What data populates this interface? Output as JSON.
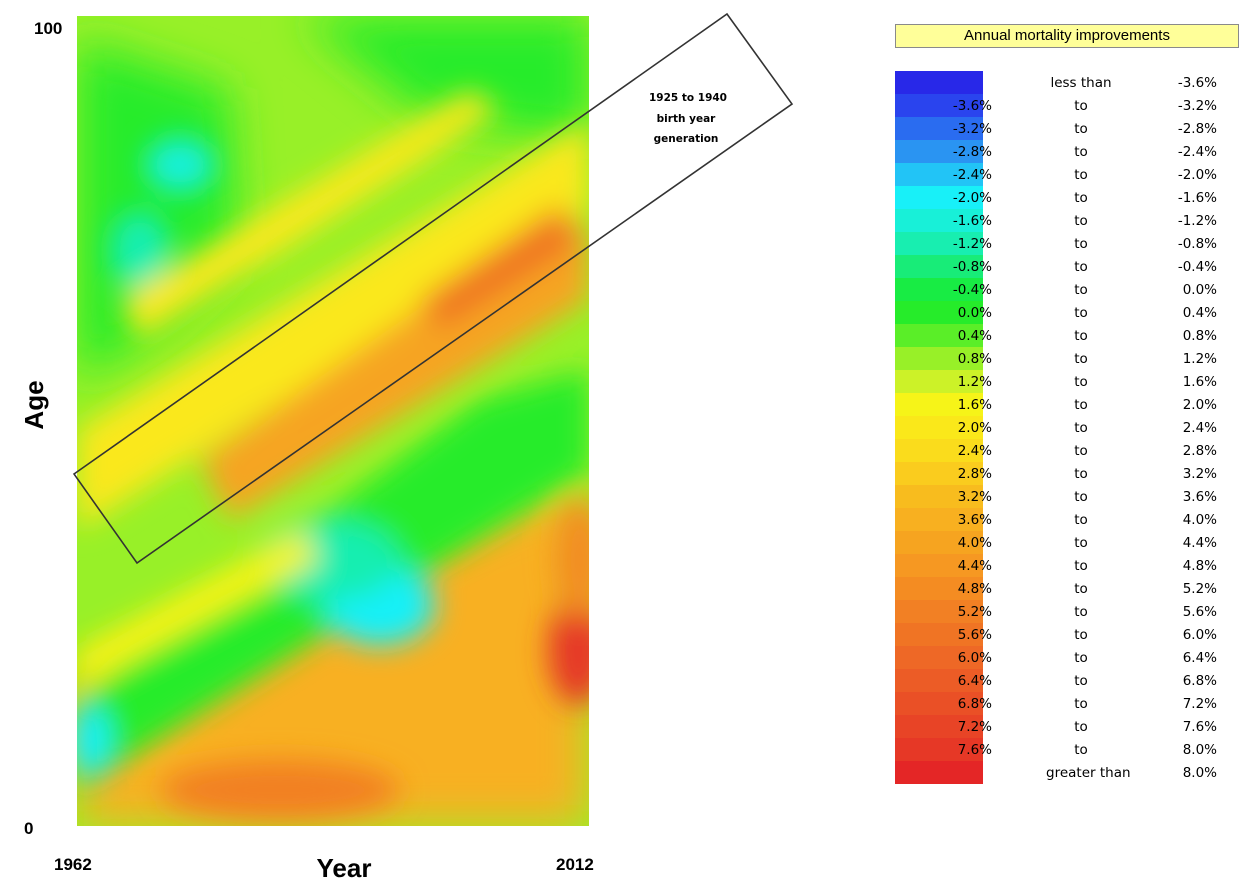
{
  "chart_data": {
    "type": "heatmap",
    "title": "",
    "xlabel": "Year",
    "ylabel": "Age",
    "x_ticks": [
      "1962",
      "2012"
    ],
    "y_ticks": [
      "100",
      "0"
    ],
    "xlim": [
      1962,
      2012
    ],
    "ylim": [
      0,
      100
    ],
    "value_unit": "% annual mortality improvement",
    "annotation": {
      "lines": [
        "1925 to 1940",
        "birth year",
        "generation"
      ],
      "shape": "rotated rectangle along cohort diagonal"
    },
    "legend": {
      "title": "Annual mortality improvements",
      "placement": "right",
      "bins": [
        {
          "from": "",
          "word": "less than",
          "to": "-3.6%",
          "color": "#2828e8"
        },
        {
          "from": "-3.6%",
          "word": "to",
          "to": "-3.2%",
          "color": "#2a44ee"
        },
        {
          "from": "-3.2%",
          "word": "to",
          "to": "-2.8%",
          "color": "#2a6cf0"
        },
        {
          "from": "-2.8%",
          "word": "to",
          "to": "-2.4%",
          "color": "#2a94f2"
        },
        {
          "from": "-2.4%",
          "word": "to",
          "to": "-2.0%",
          "color": "#22c4f6"
        },
        {
          "from": "-2.0%",
          "word": "to",
          "to": "-1.6%",
          "color": "#18f0f8"
        },
        {
          "from": "-1.6%",
          "word": "to",
          "to": "-1.2%",
          "color": "#18f0d8"
        },
        {
          "from": "-1.2%",
          "word": "to",
          "to": "-0.8%",
          "color": "#18eeb0"
        },
        {
          "from": "-0.8%",
          "word": "to",
          "to": "-0.4%",
          "color": "#18ec78"
        },
        {
          "from": "-0.4%",
          "word": "to",
          "to": "0.0%",
          "color": "#18ec44"
        },
        {
          "from": "0.0%",
          "word": "to",
          "to": "0.4%",
          "color": "#26ec2a"
        },
        {
          "from": "0.4%",
          "word": "to",
          "to": "0.8%",
          "color": "#5aee28"
        },
        {
          "from": "0.8%",
          "word": "to",
          "to": "1.2%",
          "color": "#98f028"
        },
        {
          "from": "1.2%",
          "word": "to",
          "to": "1.6%",
          "color": "#ccf228"
        },
        {
          "from": "1.6%",
          "word": "to",
          "to": "2.0%",
          "color": "#f6f418"
        },
        {
          "from": "2.0%",
          "word": "to",
          "to": "2.4%",
          "color": "#fae81a"
        },
        {
          "from": "2.4%",
          "word": "to",
          "to": "2.8%",
          "color": "#fadc1c"
        },
        {
          "from": "2.8%",
          "word": "to",
          "to": "3.2%",
          "color": "#facc1e"
        },
        {
          "from": "3.2%",
          "word": "to",
          "to": "3.6%",
          "color": "#f8bc1e"
        },
        {
          "from": "3.6%",
          "word": "to",
          "to": "4.0%",
          "color": "#f8b020"
        },
        {
          "from": "4.0%",
          "word": "to",
          "to": "4.4%",
          "color": "#f6a420"
        },
        {
          "from": "4.4%",
          "word": "to",
          "to": "4.8%",
          "color": "#f69822"
        },
        {
          "from": "4.8%",
          "word": "to",
          "to": "5.2%",
          "color": "#f48c22"
        },
        {
          "from": "5.2%",
          "word": "to",
          "to": "5.6%",
          "color": "#f28024"
        },
        {
          "from": "5.6%",
          "word": "to",
          "to": "6.0%",
          "color": "#f07424"
        },
        {
          "from": "6.0%",
          "word": "to",
          "to": "6.4%",
          "color": "#ee6826"
        },
        {
          "from": "6.4%",
          "word": "to",
          "to": "6.8%",
          "color": "#ec5c26"
        },
        {
          "from": "6.8%",
          "word": "to",
          "to": "7.2%",
          "color": "#ea5026"
        },
        {
          "from": "7.2%",
          "word": "to",
          "to": "7.6%",
          "color": "#e84426"
        },
        {
          "from": "7.6%",
          "word": "to",
          "to": "8.0%",
          "color": "#e63826"
        },
        {
          "from": "",
          "word": "greater than",
          "to": "8.0%",
          "color": "#e42626"
        }
      ]
    }
  }
}
